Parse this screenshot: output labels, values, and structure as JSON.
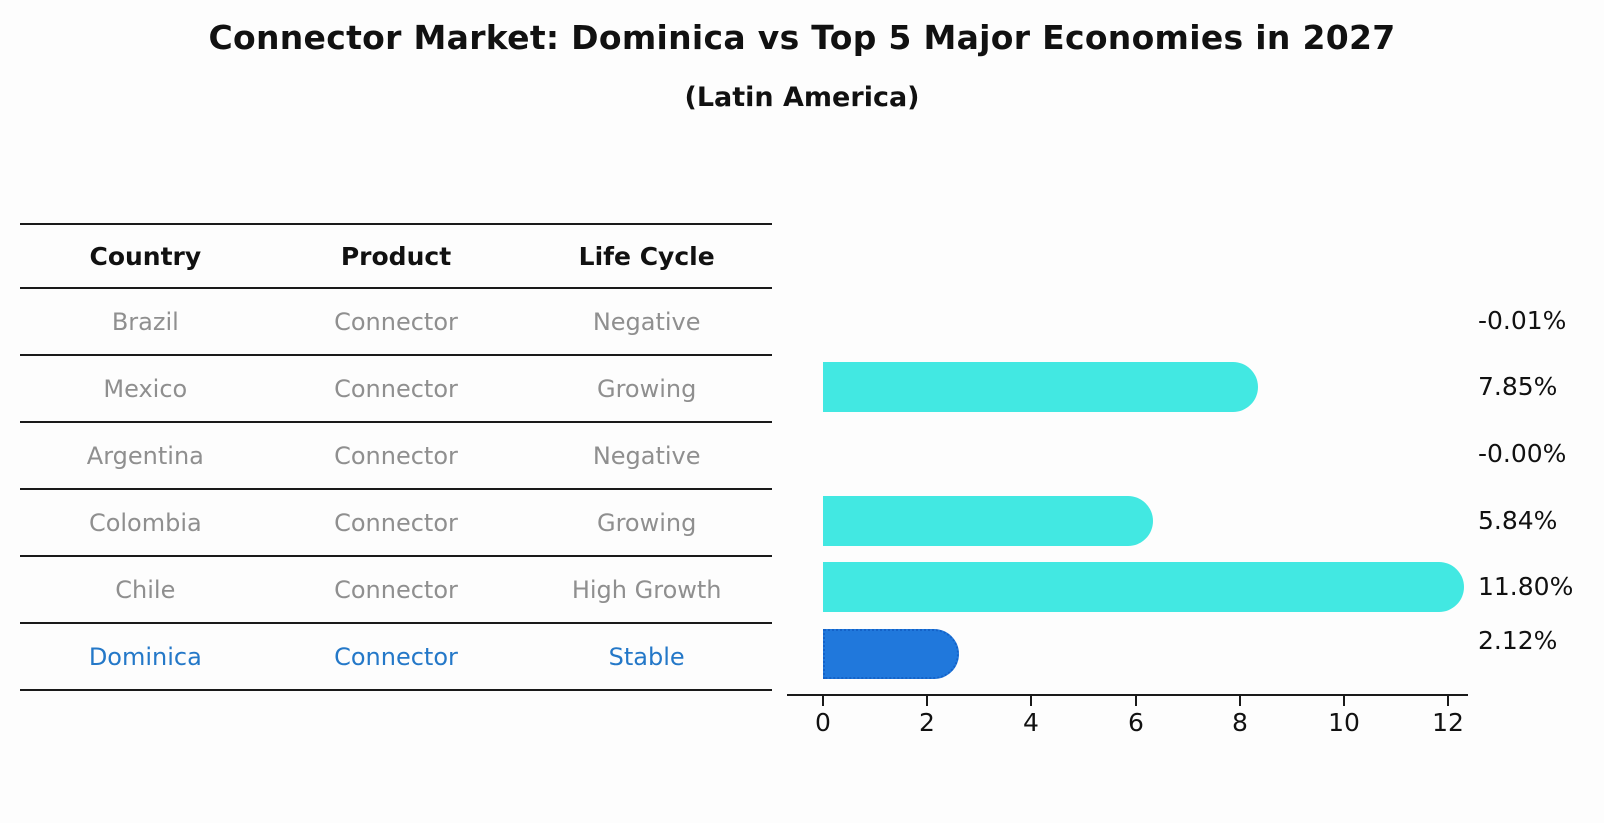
{
  "title": "Connector Market: Dominica vs Top 5 Major Economies in 2027",
  "subtitle": "(Latin America)",
  "table": {
    "headers": {
      "country": "Country",
      "product": "Product",
      "life_cycle": "Life Cycle"
    },
    "rows": [
      {
        "country": "Brazil",
        "product": "Connector",
        "life_cycle": "Negative",
        "highlight": false
      },
      {
        "country": "Mexico",
        "product": "Connector",
        "life_cycle": "Growing",
        "highlight": false
      },
      {
        "country": "Argentina",
        "product": "Connector",
        "life_cycle": "Negative",
        "highlight": false
      },
      {
        "country": "Colombia",
        "product": "Connector",
        "life_cycle": "Growing",
        "highlight": false
      },
      {
        "country": "Chile",
        "product": "Connector",
        "life_cycle": "High Growth",
        "highlight": false
      },
      {
        "country": "Dominica",
        "product": "Connector",
        "life_cycle": "Stable",
        "highlight": true
      }
    ]
  },
  "chart_data": {
    "type": "bar",
    "orientation": "horizontal",
    "categories": [
      "Brazil",
      "Mexico",
      "Argentina",
      "Colombia",
      "Chile",
      "Dominica"
    ],
    "values": [
      -0.01,
      7.85,
      0.0,
      5.84,
      11.8,
      2.12
    ],
    "value_labels": [
      "-0.01%",
      "7.85%",
      "-0.00%",
      "5.84%",
      "11.80%",
      "2.12%"
    ],
    "xticks": [
      "0",
      "2",
      "4",
      "6",
      "8",
      "10",
      "12"
    ],
    "xlim": [
      0,
      12
    ],
    "grid": false,
    "bar_colors": [
      "#42e8e2",
      "#42e8e2",
      "#42e8e2",
      "#42e8e2",
      "#42e8e2",
      "#2078dc"
    ],
    "base_color": "#42e8e2",
    "highlight_color": "#2078dc",
    "highlight_border_color": "#1462c8",
    "highlight_text_color": "#2478c8"
  }
}
